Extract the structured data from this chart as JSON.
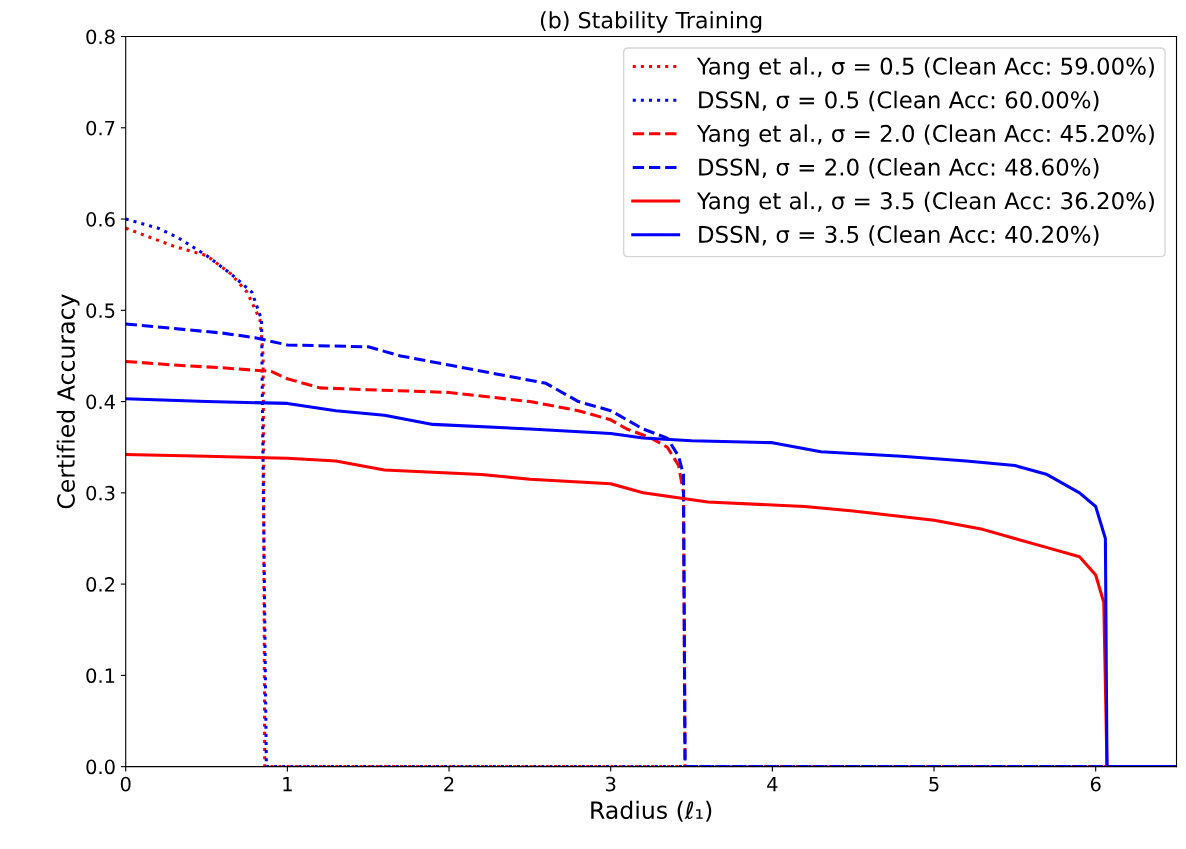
{
  "chart_data": {
    "type": "line",
    "title": "(b) Stability Training",
    "xlabel": "Radius (ℓ₁)",
    "ylabel": "Certified Accuracy",
    "xlim": [
      0,
      6.5
    ],
    "xticks": [
      0,
      1,
      2,
      3,
      4,
      5,
      6
    ],
    "ylim": [
      0,
      0.8
    ],
    "yticks": [
      {
        "value": 0,
        "label": "0.0"
      },
      0.1,
      0.2,
      0.3,
      0.4,
      0.5,
      0.6,
      0.7,
      0.8
    ],
    "legend": "top right",
    "grid": false,
    "series": [
      {
        "name": "Yang et al., σ = 0.5 (Clean Acc: 59.00%)",
        "color": "#ff0000",
        "line_style": "dotted",
        "x": [
          0,
          0.3,
          0.5,
          0.65,
          0.75,
          0.83,
          0.85,
          0.86,
          6.5
        ],
        "values": [
          0.59,
          0.57,
          0.56,
          0.54,
          0.52,
          0.49,
          0.45,
          0,
          0
        ]
      },
      {
        "name": "DSSN, σ = 0.5 (Clean Acc: 60.00%)",
        "color": "#0000ff",
        "line_style": "dotted",
        "x": [
          0,
          0.2,
          0.32,
          0.5,
          0.65,
          0.78,
          0.84,
          0.87,
          6.5
        ],
        "values": [
          0.6,
          0.59,
          0.58,
          0.56,
          0.54,
          0.52,
          0.49,
          0,
          0
        ]
      },
      {
        "name": "Yang et al., σ = 2.0 (Clean Acc: 45.20%)",
        "color": "#ff0000",
        "line_style": "dashed",
        "x": [
          0,
          0.3,
          0.6,
          0.9,
          1.0,
          1.2,
          1.5,
          2.0,
          2.5,
          2.8,
          3.0,
          3.1,
          3.25,
          3.35,
          3.42,
          3.45,
          3.46,
          6.5
        ],
        "values": [
          0.444,
          0.44,
          0.437,
          0.433,
          0.425,
          0.415,
          0.413,
          0.41,
          0.4,
          0.39,
          0.38,
          0.37,
          0.36,
          0.35,
          0.33,
          0.3,
          0,
          0
        ]
      },
      {
        "name": "DSSN, σ = 2.0 (Clean Acc: 48.60%)",
        "color": "#0000ff",
        "line_style": "dashed",
        "x": [
          0,
          0.3,
          0.6,
          0.8,
          1.0,
          1.5,
          1.7,
          2.0,
          2.3,
          2.6,
          2.8,
          3.0,
          3.2,
          3.35,
          3.42,
          3.45,
          3.46,
          6.5
        ],
        "values": [
          0.485,
          0.48,
          0.475,
          0.47,
          0.462,
          0.46,
          0.45,
          0.44,
          0.43,
          0.42,
          0.4,
          0.39,
          0.37,
          0.36,
          0.34,
          0.32,
          0,
          0
        ]
      },
      {
        "name": "Yang et al., σ = 3.5 (Clean Acc: 36.20%)",
        "color": "#ff0000",
        "line_style": "solid",
        "x": [
          0,
          0.5,
          1,
          1.3,
          1.6,
          2.2,
          2.5,
          3.0,
          3.2,
          3.6,
          4.2,
          4.5,
          5.0,
          5.3,
          5.5,
          5.7,
          5.9,
          6.0,
          6.05,
          6.07,
          6.5
        ],
        "values": [
          0.342,
          0.34,
          0.338,
          0.335,
          0.325,
          0.32,
          0.315,
          0.31,
          0.3,
          0.29,
          0.285,
          0.28,
          0.27,
          0.26,
          0.25,
          0.24,
          0.23,
          0.21,
          0.18,
          0,
          0
        ]
      },
      {
        "name": "DSSN, σ = 3.5 (Clean Acc: 40.20%)",
        "color": "#0000ff",
        "line_style": "solid",
        "x": [
          0,
          0.5,
          1,
          1.3,
          1.6,
          1.9,
          2.5,
          3.0,
          3.2,
          3.5,
          4.0,
          4.3,
          4.8,
          5.2,
          5.5,
          5.7,
          5.9,
          6.0,
          6.06,
          6.07,
          6.5
        ],
        "values": [
          0.403,
          0.4,
          0.398,
          0.39,
          0.385,
          0.375,
          0.37,
          0.365,
          0.36,
          0.357,
          0.355,
          0.345,
          0.34,
          0.335,
          0.33,
          0.32,
          0.3,
          0.285,
          0.25,
          0,
          0
        ]
      }
    ]
  }
}
